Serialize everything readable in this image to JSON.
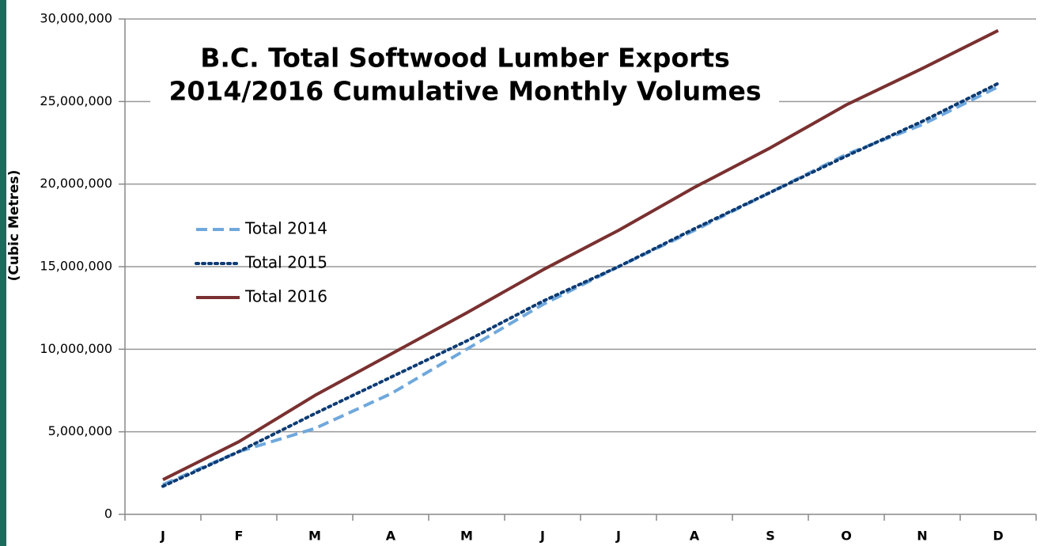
{
  "chart_data": {
    "type": "line",
    "title": [
      "B.C. Total Softwood Lumber Exports",
      "2014/2016 Cumulative Monthly  Volumes"
    ],
    "y_label": "(Cubic Metres)",
    "categories": [
      "J",
      "F",
      "M",
      "A",
      "M",
      "J",
      "J",
      "A",
      "S",
      "O",
      "N",
      "D"
    ],
    "series": [
      {
        "name": "Total 2014",
        "color": "#6fa8dc",
        "dash": "dashed",
        "values": [
          1800000,
          3800000,
          5200000,
          7300000,
          10000000,
          12700000,
          15000000,
          17200000,
          19500000,
          21800000,
          23600000,
          25900000
        ]
      },
      {
        "name": "Total 2015",
        "color": "#0d3b73",
        "dash": "dotted",
        "values": [
          1700000,
          3800000,
          6100000,
          8300000,
          10500000,
          12900000,
          15000000,
          17300000,
          19500000,
          21700000,
          23800000,
          26100000
        ]
      },
      {
        "name": "Total 2016",
        "color": "#7a3030",
        "dash": "solid",
        "values": [
          2100000,
          4400000,
          7200000,
          9700000,
          12200000,
          14800000,
          17200000,
          19800000,
          22200000,
          24800000,
          27000000,
          29300000
        ]
      }
    ],
    "ylim": [
      0,
      30000000
    ],
    "yticks": [
      0,
      {
        "value": 5000000,
        "label": "5,000,000"
      },
      {
        "value": 10000000,
        "label": "10,000,000"
      },
      {
        "value": 15000000,
        "label": "15,000,000"
      },
      {
        "value": 20000000,
        "label": "20,000,000"
      },
      {
        "value": 25000000,
        "label": "25,000,000"
      },
      {
        "value": 30000000,
        "label": "30,000,000"
      }
    ],
    "grid": true,
    "legend": "left"
  }
}
